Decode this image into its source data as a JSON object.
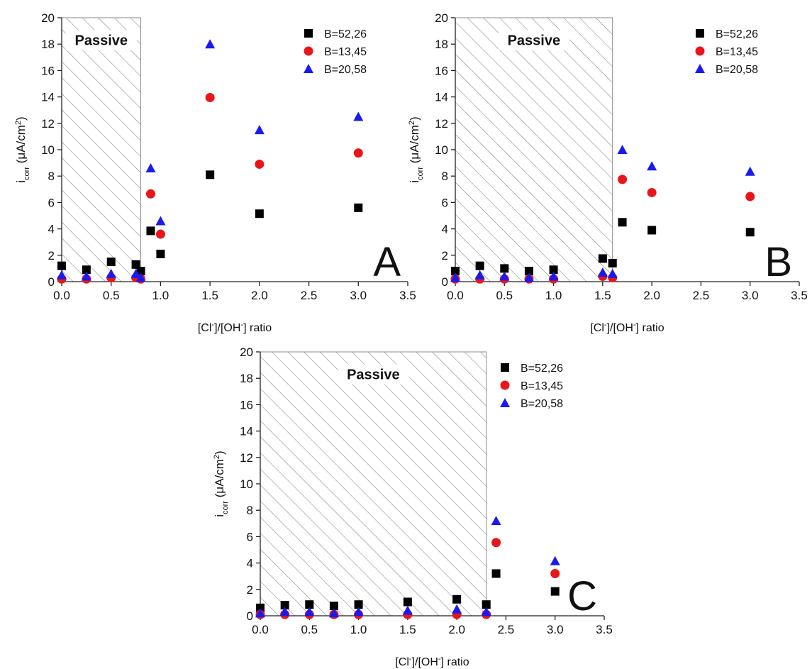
{
  "chart_data": [
    {
      "type": "scatter",
      "panel_label": "A",
      "annotation": "Passive",
      "passive_region": [
        0,
        0.8
      ],
      "xlabel_parts": [
        "[Cl",
        "-",
        "]/[OH",
        "-",
        "] ratio"
      ],
      "ylabel_parts": [
        "i",
        "corr",
        " (μA/cm",
        "2",
        ")"
      ],
      "xlim": [
        0,
        3.5
      ],
      "ylim": [
        0,
        20
      ],
      "xticks": [
        {
          "value": 0,
          "label": "0.0"
        },
        0.5,
        {
          "value": 1,
          "label": "1.0"
        },
        1.5,
        {
          "value": 2,
          "label": "2.0"
        },
        2.5,
        {
          "value": 3,
          "label": "3.0"
        },
        3.5
      ],
      "yticks": [
        0,
        2,
        4,
        6,
        8,
        10,
        12,
        14,
        16,
        18,
        20
      ],
      "x": [
        0,
        0.25,
        0.5,
        0.75,
        0.8,
        0.9,
        1.0,
        1.5,
        2.0,
        3.0
      ],
      "series": [
        {
          "name": "B=52,26",
          "color": "#000000",
          "marker": "square",
          "values": [
            1.2,
            0.9,
            1.5,
            1.3,
            0.8,
            3.85,
            2.1,
            8.1,
            5.15,
            5.6
          ]
        },
        {
          "name": "B=13,45",
          "color": "#e8161b",
          "marker": "circle",
          "values": [
            0.2,
            0.2,
            0.3,
            0.3,
            0.2,
            6.65,
            3.6,
            13.95,
            8.9,
            9.75
          ]
        },
        {
          "name": "B=20,58",
          "color": "#1a1aee",
          "marker": "triangle",
          "values": [
            0.5,
            0.4,
            0.6,
            0.6,
            0.3,
            8.6,
            4.6,
            18.0,
            11.5,
            12.5
          ]
        }
      ]
    },
    {
      "type": "scatter",
      "panel_label": "B",
      "annotation": "Passive",
      "passive_region": [
        0,
        1.6
      ],
      "xlabel_parts": [
        "[Cl",
        "-",
        "]/[OH",
        "-",
        "] ratio"
      ],
      "ylabel_parts": [
        "i",
        "corr",
        " (μA/cm",
        "2",
        ")"
      ],
      "xlim": [
        0,
        3.5
      ],
      "ylim": [
        0,
        20
      ],
      "xticks": [
        {
          "value": 0,
          "label": "0.0"
        },
        0.5,
        {
          "value": 1,
          "label": "1.0"
        },
        1.5,
        {
          "value": 2,
          "label": "2.0"
        },
        2.5,
        {
          "value": 3,
          "label": "3.0"
        },
        3.5
      ],
      "yticks": [
        0,
        2,
        4,
        6,
        8,
        10,
        12,
        14,
        16,
        18,
        20
      ],
      "x": [
        0,
        0.25,
        0.5,
        0.75,
        1.0,
        1.5,
        1.6,
        1.7,
        2.0,
        3.0
      ],
      "series": [
        {
          "name": "B=52,26",
          "color": "#000000",
          "marker": "square",
          "values": [
            0.8,
            1.2,
            1.0,
            0.8,
            0.9,
            1.75,
            1.4,
            4.5,
            3.9,
            3.75
          ]
        },
        {
          "name": "B=13,45",
          "color": "#e8161b",
          "marker": "circle",
          "values": [
            0.2,
            0.2,
            0.2,
            0.2,
            0.2,
            0.4,
            0.3,
            7.75,
            6.75,
            6.45
          ]
        },
        {
          "name": "B=20,58",
          "color": "#1a1aee",
          "marker": "triangle",
          "values": [
            0.3,
            0.5,
            0.4,
            0.3,
            0.4,
            0.7,
            0.6,
            10.0,
            8.75,
            8.35
          ]
        }
      ]
    },
    {
      "type": "scatter",
      "panel_label": "C",
      "annotation": "Passive",
      "passive_region": [
        0,
        2.3
      ],
      "xlabel_parts": [
        "[Cl",
        "-",
        "]/[OH",
        "-",
        "] ratio"
      ],
      "ylabel_parts": [
        "i",
        "corr",
        " (μA/cm",
        "2",
        ")"
      ],
      "xlim": [
        0,
        3.5
      ],
      "ylim": [
        0,
        20
      ],
      "xticks": [
        {
          "value": 0,
          "label": "0.0"
        },
        0.5,
        {
          "value": 1,
          "label": "1.0"
        },
        1.5,
        {
          "value": 2,
          "label": "2.0"
        },
        2.5,
        {
          "value": 3,
          "label": "3.0"
        },
        3.5
      ],
      "yticks": [
        0,
        2,
        4,
        6,
        8,
        10,
        12,
        14,
        16,
        18,
        20
      ],
      "x": [
        0,
        0.25,
        0.5,
        0.75,
        1.0,
        1.5,
        2.0,
        2.3,
        2.4,
        3.0
      ],
      "series": [
        {
          "name": "B=52,26",
          "color": "#000000",
          "marker": "square",
          "values": [
            0.6,
            0.8,
            0.85,
            0.75,
            0.85,
            1.05,
            1.25,
            0.85,
            3.2,
            1.85
          ]
        },
        {
          "name": "B=13,45",
          "color": "#e8161b",
          "marker": "circle",
          "values": [
            0.1,
            0.1,
            0.1,
            0.1,
            0.1,
            0.1,
            0.1,
            0.1,
            5.55,
            3.2
          ]
        },
        {
          "name": "B=20,58",
          "color": "#1a1aee",
          "marker": "triangle",
          "values": [
            0.2,
            0.3,
            0.3,
            0.2,
            0.3,
            0.4,
            0.5,
            0.3,
            7.2,
            4.15
          ]
        }
      ]
    }
  ]
}
